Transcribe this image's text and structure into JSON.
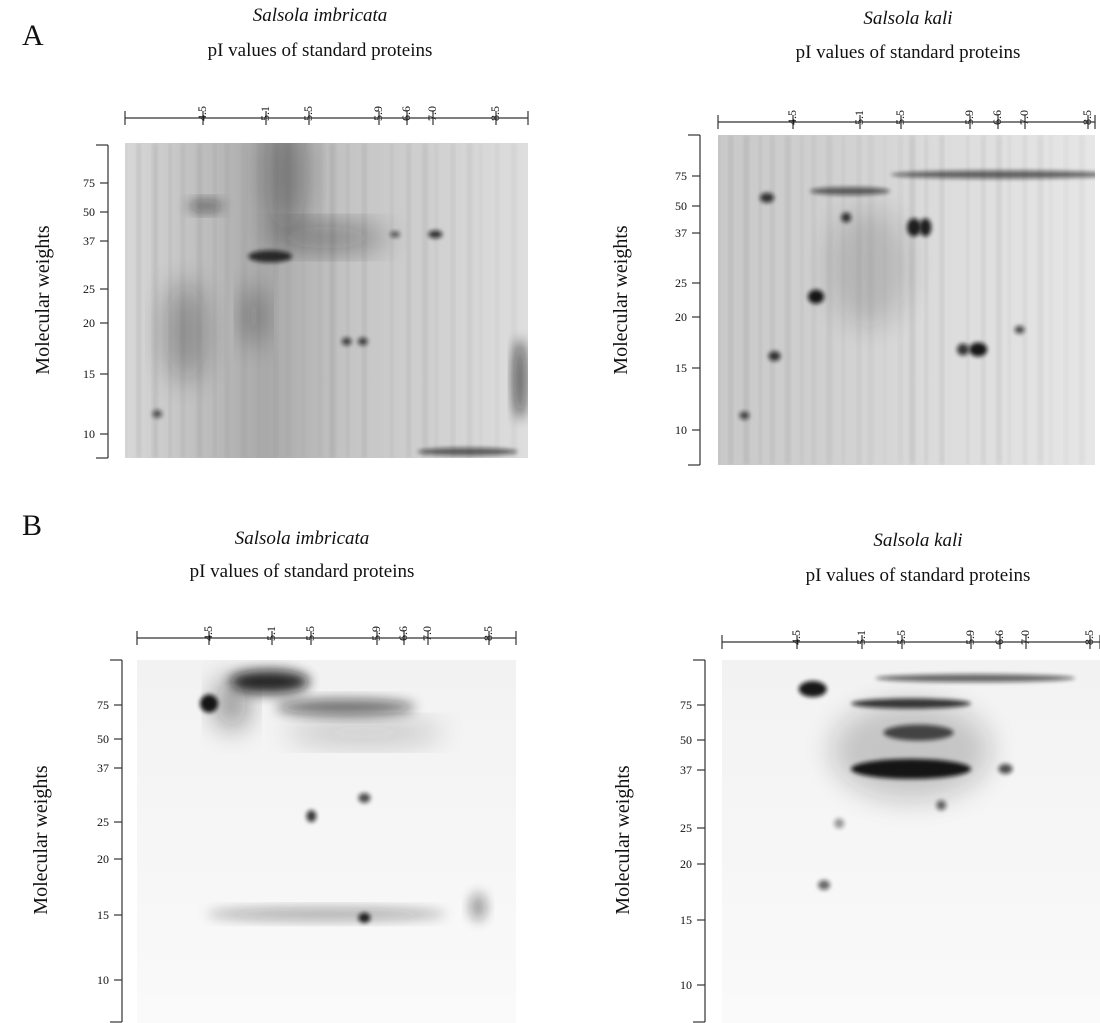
{
  "figure": {
    "rows": [
      {
        "letter": "A",
        "panels": [
          {
            "title": "Salsola imbricata",
            "subtitle": "pI values of standard proteins",
            "x_ticks": [
              "4.5",
              "5.1",
              "5.5",
              "5.9",
              "6.6",
              "7.0",
              "8.5"
            ],
            "y_label": "Molecular weights",
            "y_ticks": [
              "75",
              "50",
              "37",
              "25",
              "20",
              "15",
              "10"
            ]
          },
          {
            "title": "Salsola kali",
            "subtitle": "pI values of standard proteins",
            "x_ticks": [
              "4.5",
              "5.1",
              "5.5",
              "5.9",
              "6.6",
              "7.0",
              "8.5"
            ],
            "y_label": "Molecular weights",
            "y_ticks": [
              "75",
              "50",
              "37",
              "25",
              "20",
              "15",
              "10"
            ]
          }
        ]
      },
      {
        "letter": "B",
        "panels": [
          {
            "title": "Salsola imbricata",
            "subtitle": "pI values of standard proteins",
            "x_ticks": [
              "4.5",
              "5.1",
              "5.5",
              "5.9",
              "6.6",
              "7.0",
              "8.5"
            ],
            "y_label": "Molecular weights",
            "y_ticks": [
              "75",
              "50",
              "37",
              "25",
              "20",
              "15",
              "10"
            ]
          },
          {
            "title": "Salsola kali",
            "subtitle": "pI values of standard proteins",
            "x_ticks": [
              "4.5",
              "5.1",
              "5.5",
              "5.9",
              "6.6",
              "7.0",
              "8.5"
            ],
            "y_label": "Molecular weights",
            "y_ticks": [
              "75",
              "50",
              "37",
              "25",
              "20",
              "15",
              "10"
            ]
          }
        ]
      }
    ]
  }
}
